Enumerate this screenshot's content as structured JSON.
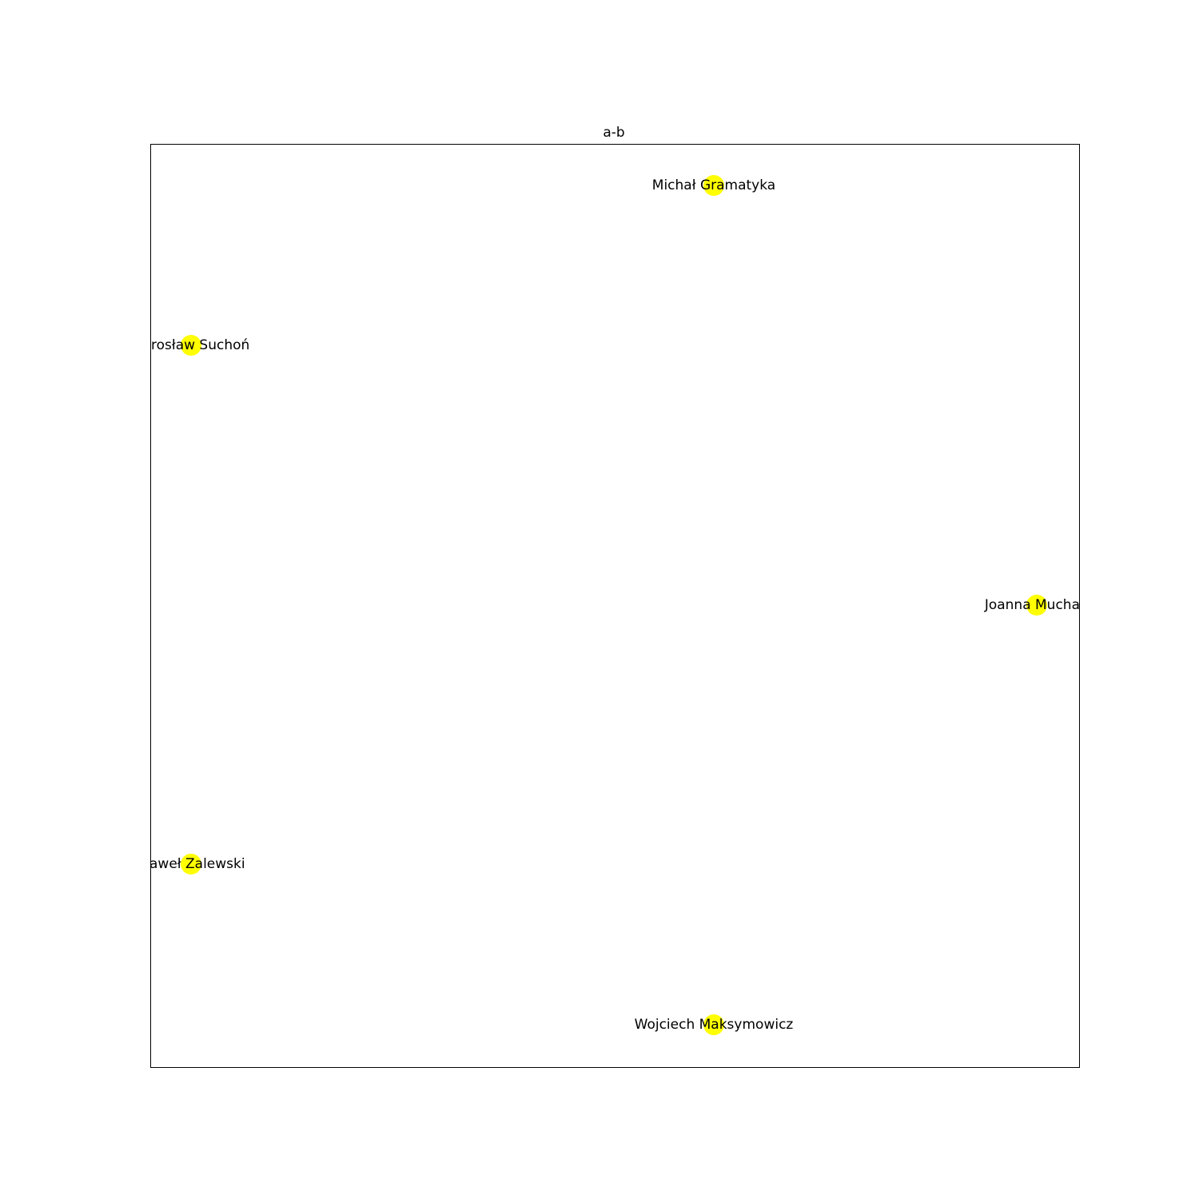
{
  "title": "a-b",
  "nodes": [
    {
      "label": "Michał Gramatyka"
    },
    {
      "label": "rosław Suchoń"
    },
    {
      "label": "Joanna Mucha"
    },
    {
      "label": "aweł Zalewski"
    },
    {
      "label": "Wojciech Maksymowicz"
    }
  ]
}
